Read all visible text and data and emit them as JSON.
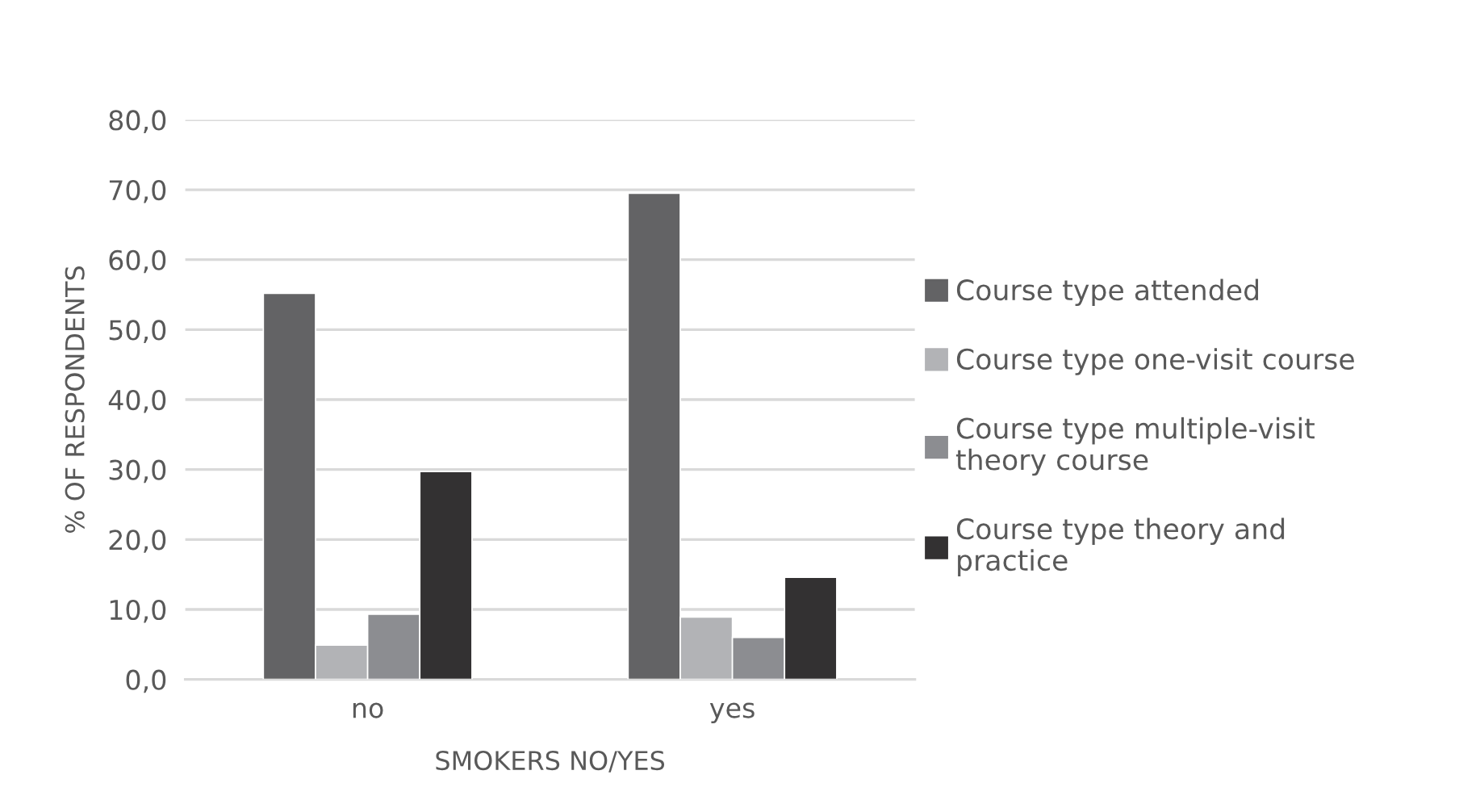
{
  "chart_data": {
    "type": "bar",
    "xlabel": "SMOKERS NO/YES",
    "ylabel": "% OF RESPONDENTS",
    "categories": [
      "no",
      "yes"
    ],
    "series": [
      {
        "name": "Course type attended",
        "color": "#636365",
        "values": [
          55.2,
          69.5
        ]
      },
      {
        "name": "Course type one-visit course",
        "color": "#b2b3b6",
        "values": [
          4.9,
          8.9
        ]
      },
      {
        "name": "Course type multiple-visit theory course",
        "color": "#8c8d91",
        "values": [
          9.3,
          6.0
        ]
      },
      {
        "name": "Course type theory and practice",
        "color": "#333132",
        "values": [
          29.7,
          14.6
        ]
      }
    ],
    "ylim": [
      0,
      80
    ],
    "yticks": [
      {
        "value": 0,
        "label": "0,0"
      },
      {
        "value": 10,
        "label": "10,0"
      },
      {
        "value": 20,
        "label": "20,0"
      },
      {
        "value": 30,
        "label": "30,0"
      },
      {
        "value": 40,
        "label": "40,0"
      },
      {
        "value": 50,
        "label": "50,0"
      },
      {
        "value": 60,
        "label": "60,0"
      },
      {
        "value": 70,
        "label": "70,0"
      },
      {
        "value": 80,
        "label": "80,0"
      }
    ],
    "grid": "y",
    "legend": "right"
  }
}
